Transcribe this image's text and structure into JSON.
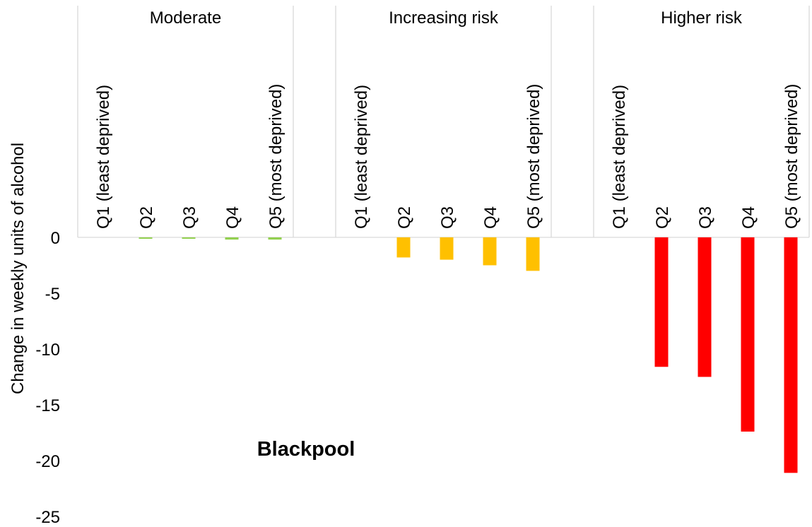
{
  "chart_data": {
    "type": "bar",
    "annotation": "Blackpool",
    "ylabel": "Change in weekly units of alcohol",
    "xlabel": "",
    "ylim": [
      -25,
      0
    ],
    "yticks": [
      0,
      -5,
      -10,
      -15,
      -20,
      -25
    ],
    "grid": false,
    "legend": "none",
    "groups": [
      {
        "name": "Moderate",
        "color": "#92D050",
        "categories": [
          "Q1  (least deprived)",
          "Q2",
          "Q3",
          "Q4",
          "Q5  (most deprived)"
        ],
        "values": [
          0,
          -0.1,
          -0.1,
          -0.2,
          -0.2
        ]
      },
      {
        "name": "Increasing risk",
        "color": "#FFC000",
        "categories": [
          "Q1  (least deprived)",
          "Q2",
          "Q3",
          "Q4",
          "Q5  (most deprived)"
        ],
        "values": [
          0,
          -1.8,
          -2.0,
          -2.5,
          -3.0
        ]
      },
      {
        "name": "Higher risk",
        "color": "#FF0000",
        "categories": [
          "Q1  (least deprived)",
          "Q2",
          "Q3",
          "Q4",
          "Q5  (most deprived)"
        ],
        "values": [
          0,
          -11.6,
          -12.5,
          -17.4,
          -21.1
        ]
      }
    ]
  }
}
